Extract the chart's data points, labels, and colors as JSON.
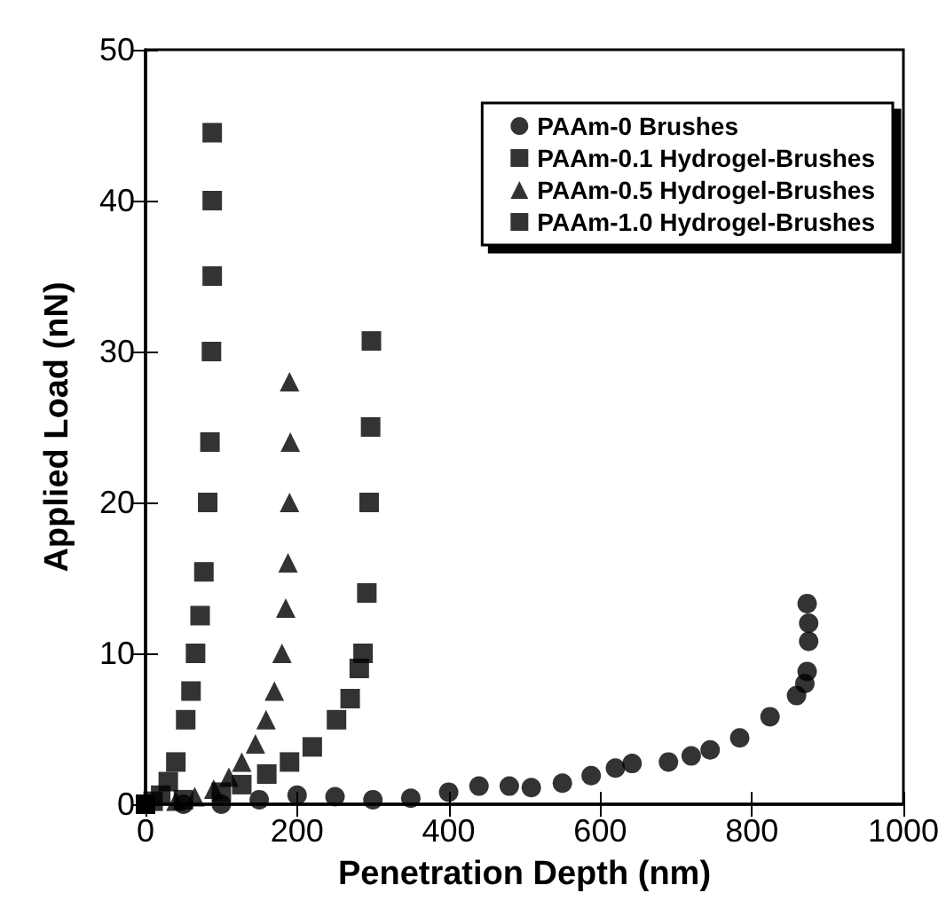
{
  "chart_data": {
    "type": "scatter",
    "xlabel": "Penetration Depth (nm)",
    "ylabel": "Applied Load (nN)",
    "xlim": [
      0,
      1000
    ],
    "xticks": [
      0,
      200,
      400,
      600,
      800,
      1000
    ],
    "ylim": [
      0,
      50
    ],
    "yticks": [
      0,
      10,
      20,
      30,
      40,
      50
    ],
    "grid": false,
    "legend": "top right",
    "series": [
      {
        "name": "PAAm-0 Brushes",
        "color": "#000000",
        "marker": "circle",
        "x": [
          0,
          50,
          100,
          150,
          200,
          250,
          300,
          350,
          400,
          440,
          480,
          509,
          550,
          588,
          620,
          642,
          690,
          720,
          745,
          784,
          824,
          859,
          870,
          873,
          875,
          875,
          873
        ],
        "values": [
          0,
          0,
          0,
          0.3,
          0.6,
          0.5,
          0.3,
          0.4,
          0.8,
          1.2,
          1.2,
          1.1,
          1.4,
          1.9,
          2.4,
          2.7,
          2.8,
          3.2,
          3.6,
          4.4,
          5.8,
          7.2,
          8,
          8.8,
          10.8,
          12,
          13.3
        ]
      },
      {
        "name": "PAAm-0.1 Hydrogel-Brushes",
        "color": "#000000",
        "marker": "square",
        "x": [
          0,
          50,
          100,
          127,
          160,
          190,
          220,
          252,
          270,
          282,
          287,
          292,
          295,
          297,
          298
        ],
        "values": [
          0,
          0.3,
          0.8,
          1.3,
          2,
          2.8,
          3.8,
          5.6,
          7,
          9,
          10,
          14,
          20,
          25,
          30.7
        ]
      },
      {
        "name": "PAAm-0.5 Hydrogel-Brushes",
        "color": "#000000",
        "marker": "triangle",
        "x": [
          0,
          40,
          65,
          90,
          110,
          127,
          145,
          159,
          170,
          180,
          185,
          188,
          190,
          191,
          190
        ],
        "values": [
          0,
          0.2,
          0.5,
          1,
          1.8,
          2.8,
          4,
          5.6,
          7.5,
          10,
          13,
          16,
          20,
          24,
          28
        ]
      },
      {
        "name": "PAAm-1.0 Hydrogel-Brushes",
        "color": "#000000",
        "marker": "square",
        "x": [
          0,
          10,
          20,
          30,
          40,
          53,
          60,
          66,
          72,
          77,
          82,
          85,
          87,
          88,
          88,
          88
        ],
        "values": [
          0,
          0.2,
          0.6,
          1.5,
          2.8,
          5.6,
          7.5,
          10,
          12.5,
          15.4,
          20,
          24,
          30,
          35,
          40,
          44.5
        ]
      }
    ]
  }
}
